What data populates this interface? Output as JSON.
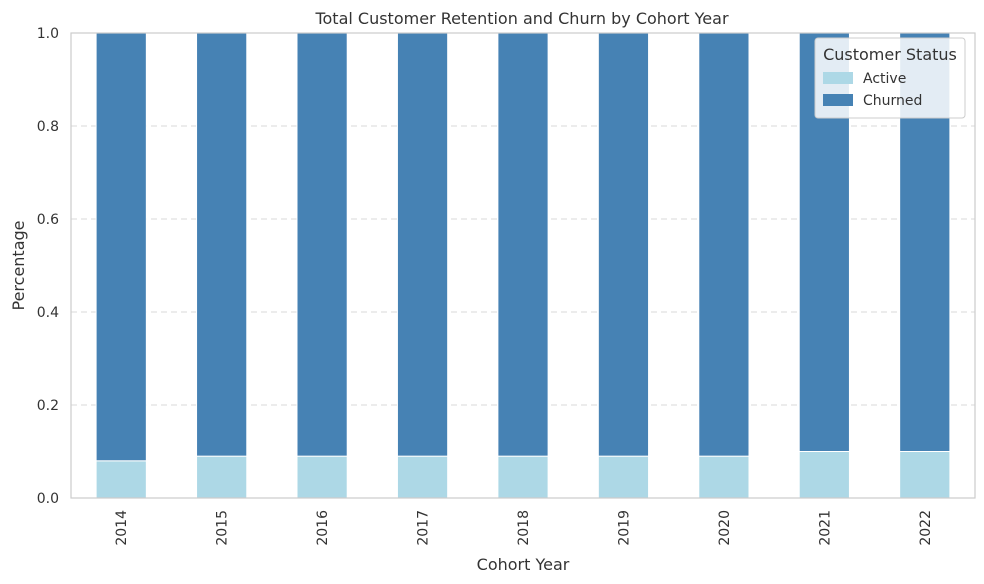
{
  "chart_data": {
    "type": "bar",
    "stacked": true,
    "title": "Total Customer Retention and Churn by Cohort Year",
    "xlabel": "Cohort Year",
    "ylabel": "Percentage",
    "categories": [
      "2014",
      "2015",
      "2016",
      "2017",
      "2018",
      "2019",
      "2020",
      "2021",
      "2022"
    ],
    "series": [
      {
        "name": "Active",
        "color": "#add8e6",
        "values": [
          0.08,
          0.09,
          0.09,
          0.09,
          0.09,
          0.09,
          0.09,
          0.1,
          0.1
        ]
      },
      {
        "name": "Churned",
        "color": "#4682b4",
        "values": [
          0.92,
          0.91,
          0.91,
          0.91,
          0.91,
          0.91,
          0.91,
          0.9,
          0.9
        ]
      }
    ],
    "ylim": [
      0,
      1.0
    ],
    "yticks": [
      "0.0",
      "0.2",
      "0.4",
      "0.6",
      "0.8",
      "1.0"
    ],
    "grid": "y-dashed",
    "legend": {
      "title": "Customer Status",
      "placement": "top-right"
    }
  }
}
